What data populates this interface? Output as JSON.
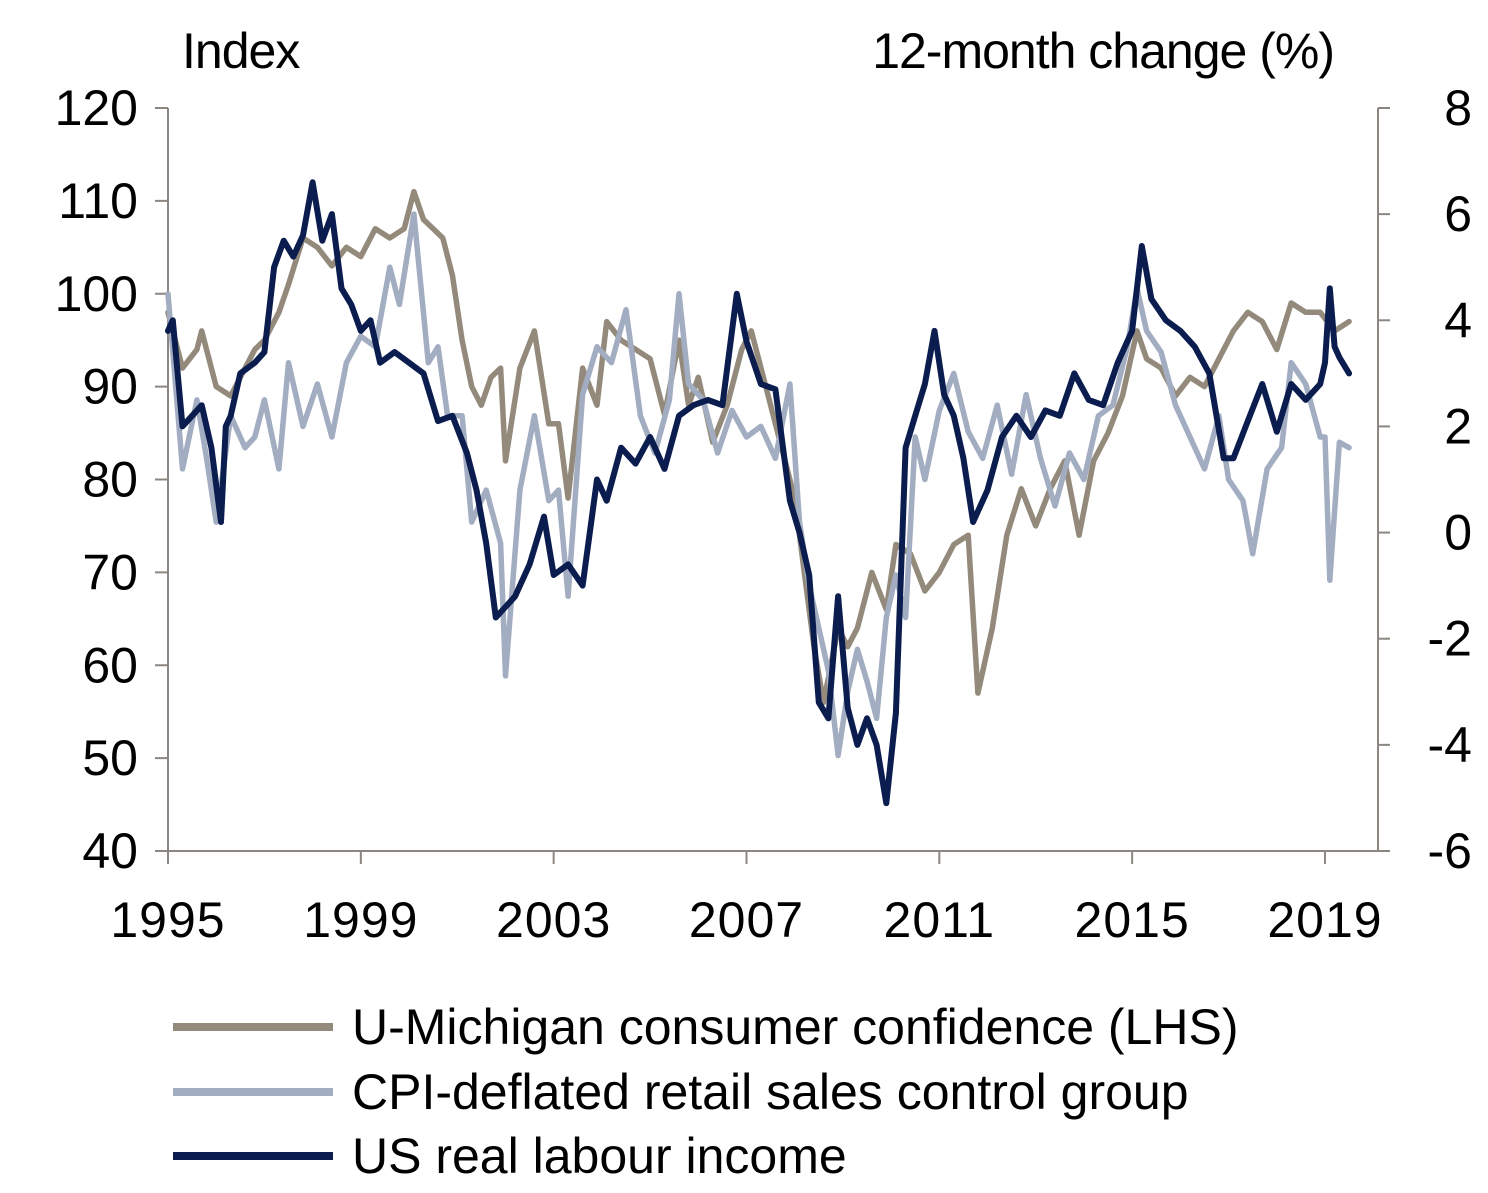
{
  "chart_data": {
    "type": "line",
    "left_axis": {
      "title": "Index",
      "ylim": [
        40,
        120
      ],
      "ticks": [
        "120",
        "110",
        "100",
        "90",
        "80",
        "70",
        "60",
        "50",
        "40"
      ]
    },
    "right_axis": {
      "title": "12-month change (%)",
      "ylim": [
        -6,
        8
      ],
      "ticks": [
        "8",
        "6",
        "4",
        "2",
        "0",
        "-2",
        "-4",
        "-6"
      ]
    },
    "x_axis": {
      "xlim": [
        1995,
        2020.1
      ],
      "ticks": [
        "1995",
        "1999",
        "2003",
        "2007",
        "2011",
        "2015",
        "2019"
      ]
    },
    "grid": false,
    "legend_position": "bottom",
    "series": [
      {
        "name": "U-Michigan consumer confidence (LHS)",
        "axis": "left",
        "color": "#948a7c",
        "x": [
          1995,
          1995.3,
          1995.6,
          1995.7,
          1996,
          1996.3,
          1996.6,
          1996.8,
          1997,
          1997.3,
          1997.5,
          1997.8,
          1998.1,
          1998.4,
          1998.7,
          1999,
          1999.3,
          1999.6,
          1999.9,
          2000.1,
          2000.3,
          2000.5,
          2000.7,
          2000.9,
          2001.1,
          2001.3,
          2001.5,
          2001.7,
          2001.9,
          2002,
          2002.3,
          2002.6,
          2002.9,
          2003.1,
          2003.3,
          2003.6,
          2003.9,
          2004.1,
          2004.4,
          2004.7,
          2005,
          2005.3,
          2005.6,
          2005.8,
          2006,
          2006.3,
          2006.6,
          2006.9,
          2007.1,
          2007.4,
          2007.7,
          2008,
          2008.2,
          2008.4,
          2008.6,
          2008.9,
          2009.1,
          2009.3,
          2009.6,
          2009.9,
          2010.1,
          2010.4,
          2010.7,
          2011,
          2011.3,
          2011.6,
          2011.8,
          2012.1,
          2012.4,
          2012.7,
          2013,
          2013.3,
          2013.6,
          2013.9,
          2014.2,
          2014.5,
          2014.8,
          2015.1,
          2015.3,
          2015.6,
          2015.9,
          2016.2,
          2016.5,
          2016.8,
          2017.1,
          2017.4,
          2017.7,
          2018,
          2018.3,
          2018.6,
          2018.9,
          2019.2,
          2019.5
        ],
        "values": [
          98,
          92,
          94,
          96,
          90,
          89,
          92,
          94,
          95,
          98,
          101,
          106,
          105,
          103,
          105,
          104,
          107,
          106,
          107,
          111,
          108,
          107,
          106,
          102,
          95,
          90,
          88,
          91,
          92,
          82,
          92,
          96,
          86,
          86,
          78,
          92,
          88,
          97,
          95,
          94,
          93,
          87,
          95,
          88,
          91,
          84,
          88,
          94,
          96,
          90,
          84,
          78,
          70,
          62,
          56,
          64,
          62,
          64,
          70,
          66,
          73,
          72,
          68,
          70,
          73,
          74,
          57,
          64,
          74,
          79,
          75,
          79,
          82,
          74,
          82,
          85,
          89,
          96,
          93,
          92,
          89,
          91,
          90,
          93,
          96,
          98,
          97,
          94,
          99,
          98,
          98,
          96,
          97
        ]
      },
      {
        "name": "CPI-deflated retail sales control group",
        "axis": "right",
        "color": "#a3adc2",
        "x": [
          1995,
          1995.3,
          1995.6,
          1995.8,
          1996,
          1996.3,
          1996.6,
          1996.8,
          1997,
          1997.3,
          1997.5,
          1997.8,
          1998.1,
          1998.4,
          1998.7,
          1999,
          1999.3,
          1999.6,
          1999.8,
          2000.1,
          2000.4,
          2000.6,
          2000.8,
          2001.1,
          2001.3,
          2001.6,
          2001.9,
          2002,
          2002.3,
          2002.6,
          2002.9,
          2003.1,
          2003.3,
          2003.6,
          2003.9,
          2004.2,
          2004.5,
          2004.8,
          2005.1,
          2005.4,
          2005.6,
          2005.8,
          2006.1,
          2006.4,
          2006.7,
          2007,
          2007.3,
          2007.6,
          2007.9,
          2008.1,
          2008.3,
          2008.5,
          2008.7,
          2008.9,
          2009.1,
          2009.3,
          2009.5,
          2009.7,
          2009.9,
          2010.1,
          2010.3,
          2010.5,
          2010.7,
          2011,
          2011.3,
          2011.6,
          2011.9,
          2012.2,
          2012.5,
          2012.8,
          2013.1,
          2013.4,
          2013.7,
          2014,
          2014.3,
          2014.6,
          2014.9,
          2015.1,
          2015.3,
          2015.6,
          2015.9,
          2016.2,
          2016.5,
          2016.8,
          2017,
          2017.3,
          2017.5,
          2017.8,
          2018.1,
          2018.3,
          2018.6,
          2018.9,
          2019,
          2019.1,
          2019.3,
          2019.5
        ],
        "values": [
          4.5,
          1.2,
          2.5,
          1.4,
          0.2,
          2.2,
          1.6,
          1.8,
          2.5,
          1.2,
          3.2,
          2.0,
          2.8,
          1.8,
          3.2,
          3.7,
          3.5,
          5.0,
          4.3,
          6.0,
          3.2,
          3.5,
          2.2,
          2.2,
          0.2,
          0.8,
          -0.2,
          -2.7,
          0.8,
          2.2,
          0.6,
          0.8,
          -1.2,
          2.6,
          3.5,
          3.2,
          4.2,
          2.2,
          1.5,
          2.5,
          4.5,
          2.8,
          2.5,
          1.5,
          2.3,
          1.8,
          2.0,
          1.4,
          2.8,
          0.2,
          -1.0,
          -1.8,
          -2.6,
          -4.2,
          -3.0,
          -2.2,
          -2.8,
          -3.5,
          -1.6,
          -0.8,
          -1.6,
          1.8,
          1.0,
          2.3,
          3.0,
          1.9,
          1.4,
          2.4,
          1.1,
          2.6,
          1.4,
          0.5,
          1.5,
          1.0,
          2.2,
          2.4,
          3.5,
          4.6,
          3.8,
          3.4,
          2.4,
          1.8,
          1.2,
          2.2,
          1.0,
          0.6,
          -0.4,
          1.2,
          1.6,
          3.2,
          2.8,
          1.8,
          1.8,
          -0.9,
          1.7,
          1.6
        ]
      },
      {
        "name": "US real labour income",
        "axis": "right",
        "color": "#0b1c4f",
        "x": [
          1995,
          1995.1,
          1995.3,
          1995.5,
          1995.7,
          1995.9,
          1996.1,
          1996.2,
          1996.3,
          1996.5,
          1996.8,
          1997,
          1997.2,
          1997.4,
          1997.6,
          1997.8,
          1998,
          1998.2,
          1998.4,
          1998.6,
          1998.8,
          1999,
          1999.2,
          1999.4,
          1999.7,
          2000,
          2000.3,
          2000.6,
          2000.9,
          2001.2,
          2001.4,
          2001.6,
          2001.8,
          2002,
          2002.2,
          2002.5,
          2002.8,
          2003,
          2003.3,
          2003.6,
          2003.9,
          2004.1,
          2004.4,
          2004.7,
          2005,
          2005.3,
          2005.6,
          2005.9,
          2006.2,
          2006.5,
          2006.8,
          2007,
          2007.3,
          2007.6,
          2007.9,
          2008.1,
          2008.3,
          2008.5,
          2008.7,
          2008.9,
          2009.1,
          2009.3,
          2009.5,
          2009.7,
          2009.9,
          2010.1,
          2010.3,
          2010.5,
          2010.7,
          2010.9,
          2011.1,
          2011.3,
          2011.5,
          2011.7,
          2012,
          2012.3,
          2012.6,
          2012.9,
          2013.2,
          2013.5,
          2013.8,
          2014.1,
          2014.4,
          2014.7,
          2015,
          2015.2,
          2015.4,
          2015.7,
          2016,
          2016.3,
          2016.6,
          2016.9,
          2017.1,
          2017.4,
          2017.7,
          2018,
          2018.3,
          2018.6,
          2018.9,
          2019,
          2019.1,
          2019.2,
          2019.3,
          2019.5
        ],
        "values": [
          3.8,
          4.0,
          2.0,
          2.2,
          2.4,
          1.6,
          0.2,
          2.0,
          2.2,
          3.0,
          3.2,
          3.4,
          5.0,
          5.5,
          5.2,
          5.6,
          6.6,
          5.5,
          6.0,
          4.6,
          4.3,
          3.8,
          4.0,
          3.2,
          3.4,
          3.2,
          3.0,
          2.1,
          2.2,
          1.5,
          0.8,
          -0.2,
          -1.6,
          -1.4,
          -1.2,
          -0.6,
          0.3,
          -0.8,
          -0.6,
          -1.0,
          1.0,
          0.6,
          1.6,
          1.3,
          1.8,
          1.2,
          2.2,
          2.4,
          2.5,
          2.4,
          4.5,
          3.6,
          2.8,
          2.7,
          0.6,
          0.0,
          -0.8,
          -3.2,
          -3.5,
          -1.2,
          -3.3,
          -4.0,
          -3.5,
          -4.0,
          -5.1,
          -3.4,
          1.6,
          2.2,
          2.8,
          3.8,
          2.6,
          2.2,
          1.4,
          0.2,
          0.8,
          1.8,
          2.2,
          1.8,
          2.3,
          2.2,
          3.0,
          2.5,
          2.4,
          3.2,
          3.8,
          5.4,
          4.4,
          4.0,
          3.8,
          3.5,
          3.0,
          1.4,
          1.4,
          2.1,
          2.8,
          1.9,
          2.8,
          2.5,
          2.8,
          3.2,
          4.6,
          3.5,
          3.3,
          3.0
        ]
      }
    ]
  }
}
